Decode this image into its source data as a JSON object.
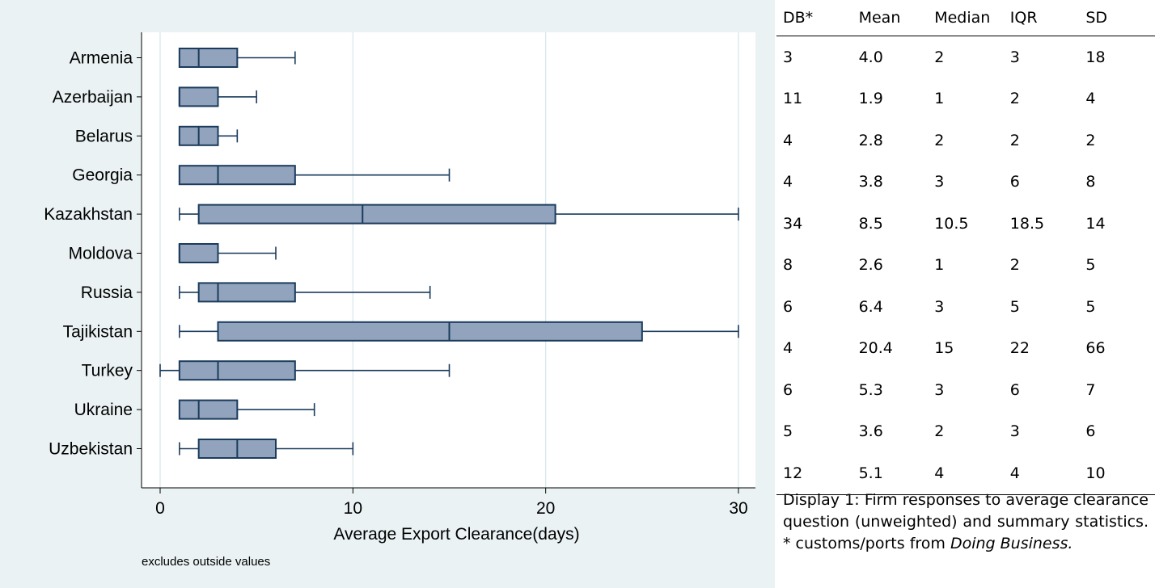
{
  "chart_data": {
    "type": "boxplot",
    "xlabel": "Average Export Clearance(days)",
    "note": "excludes outside values",
    "xlim": [
      0,
      30
    ],
    "xticks": [
      0,
      10,
      20,
      30
    ],
    "grid": true,
    "colors": {
      "box_fill": "#92a4bd",
      "box_stroke": "#1a3b5c",
      "grid": "#d6e6e8",
      "panel_bg": "#eaf2f3"
    },
    "categories": [
      "Armenia",
      "Azerbaijan",
      "Belarus",
      "Georgia",
      "Kazakhstan",
      "Moldova",
      "Russia",
      "Tajikistan",
      "Turkey",
      "Ukraine",
      "Uzbekistan"
    ],
    "boxes": [
      {
        "whisker_low": 1,
        "q1": 1,
        "median": 2,
        "q3": 4,
        "whisker_high": 7
      },
      {
        "whisker_low": 1,
        "q1": 1,
        "median": 1,
        "q3": 3,
        "whisker_high": 5
      },
      {
        "whisker_low": 1,
        "q1": 1,
        "median": 2,
        "q3": 3,
        "whisker_high": 4
      },
      {
        "whisker_low": 1,
        "q1": 1,
        "median": 3,
        "q3": 7,
        "whisker_high": 15
      },
      {
        "whisker_low": 1,
        "q1": 2,
        "median": 10.5,
        "q3": 20.5,
        "whisker_high": 30
      },
      {
        "whisker_low": 1,
        "q1": 1,
        "median": 1,
        "q3": 3,
        "whisker_high": 6
      },
      {
        "whisker_low": 1,
        "q1": 2,
        "median": 3,
        "q3": 7,
        "whisker_high": 14
      },
      {
        "whisker_low": 1,
        "q1": 3,
        "median": 15,
        "q3": 25,
        "whisker_high": 30
      },
      {
        "whisker_low": 0,
        "q1": 1,
        "median": 3,
        "q3": 7,
        "whisker_high": 15
      },
      {
        "whisker_low": 1,
        "q1": 1,
        "median": 2,
        "q3": 4,
        "whisker_high": 8
      },
      {
        "whisker_low": 1,
        "q1": 2,
        "median": 4,
        "q3": 6,
        "whisker_high": 10
      }
    ]
  },
  "table": {
    "headers": [
      "DB*",
      "Mean",
      "Median",
      "IQR",
      "SD"
    ],
    "rows": [
      [
        "3",
        "4.0",
        "2",
        "3",
        "18"
      ],
      [
        "11",
        "1.9",
        "1",
        "2",
        "4"
      ],
      [
        "4",
        "2.8",
        "2",
        "2",
        "2"
      ],
      [
        "4",
        "3.8",
        "3",
        "6",
        "8"
      ],
      [
        "34",
        "8.5",
        "10.5",
        "18.5",
        "14"
      ],
      [
        "8",
        "2.6",
        "1",
        "2",
        "5"
      ],
      [
        "6",
        "6.4",
        "3",
        "5",
        "5"
      ],
      [
        "4",
        "20.4",
        "15",
        "22",
        "66"
      ],
      [
        "6",
        "5.3",
        "3",
        "6",
        "7"
      ],
      [
        "5",
        "3.6",
        "2",
        "3",
        "6"
      ],
      [
        "12",
        "5.1",
        "4",
        "4",
        "10"
      ]
    ]
  },
  "caption": {
    "text": "Display 1: Firm responses to average clearance question (unweighted) and summary statistics. * customs/ports from ",
    "emphasis": "Doing Business."
  }
}
